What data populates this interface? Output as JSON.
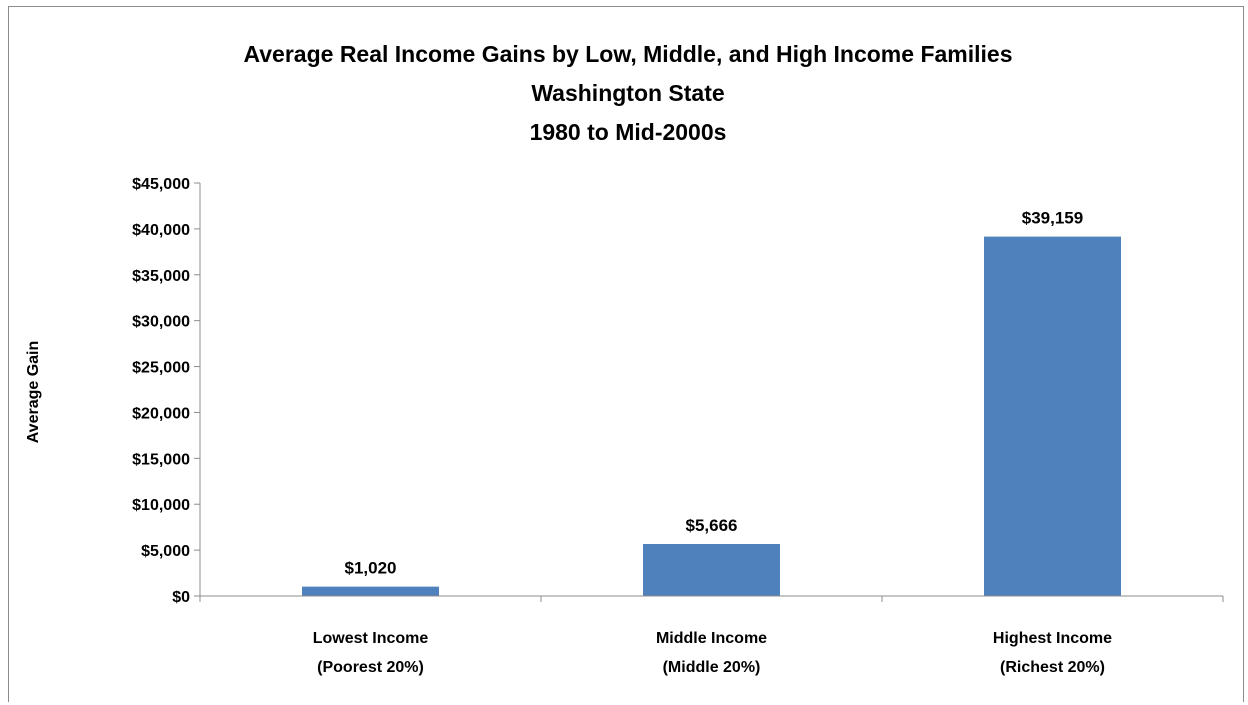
{
  "chart_data": {
    "type": "bar",
    "title_lines": [
      "Average Real Income Gains by Low, Middle, and High Income Families",
      "Washington State",
      "1980 to Mid-2000s"
    ],
    "ylabel": "Average Gain",
    "xlabel": "",
    "categories": [
      [
        "Lowest Income",
        "(Poorest 20%)"
      ],
      [
        "Middle Income",
        "(Middle 20%)"
      ],
      [
        "Highest Income",
        "(Richest 20%)"
      ]
    ],
    "values": [
      1020,
      5666,
      39159
    ],
    "data_labels": [
      "$1,020",
      "$5,666",
      "$39,159"
    ],
    "ylim": [
      0,
      45000
    ],
    "yticks": [
      0,
      5000,
      10000,
      15000,
      20000,
      25000,
      30000,
      35000,
      40000,
      45000
    ],
    "ytick_labels": [
      "$0",
      "$5,000",
      "$10,000",
      "$15,000",
      "$20,000",
      "$25,000",
      "$30,000",
      "$35,000",
      "$40,000",
      "$45,000"
    ],
    "bar_color": "#4f81bd",
    "grid": false,
    "legend": "none"
  }
}
